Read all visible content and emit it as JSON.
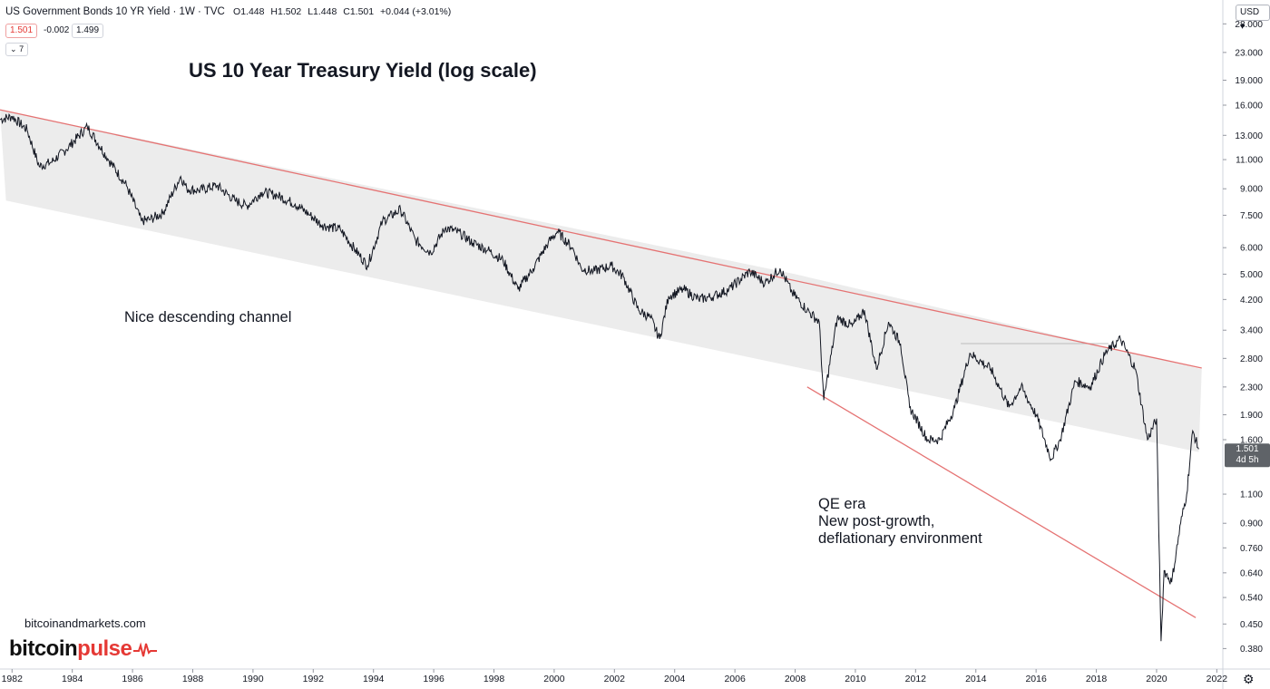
{
  "header": {
    "symbol": "US Government Bonds 10 YR Yield · 1W · TVC",
    "open": "O1.448",
    "high": "H1.502",
    "low": "L1.448",
    "close": "C1.501",
    "change": "+0.044 (+3.01%)",
    "price_pill": "1.501",
    "spread": "-0.002",
    "ask_pill": "1.499",
    "collapse_count": "7",
    "currency": "USD"
  },
  "annotations": {
    "title": "US 10 Year Treasury Yield (log scale)",
    "channel_note": "Nice descending channel",
    "qe_line1": "QE era",
    "qe_line2": "New post-growth,",
    "qe_line3": "deflationary environment"
  },
  "branding": {
    "site": "bitcoinandmarkets.com",
    "logo_part1": "bitcoin",
    "logo_part2": "pulse"
  },
  "price_tag": {
    "value": "1.501",
    "countdown": "4d 5h"
  },
  "colors": {
    "price_line": "#131722",
    "trendline": "#e57373",
    "channel_fill": "#ececec",
    "price_tag_bg": "#5f6368",
    "accent_red": "#e53935"
  },
  "chart_data": {
    "type": "line",
    "title": "US 10 Year Treasury Yield (log scale)",
    "y_scale": "log",
    "ylim": [
      0.33,
      33
    ],
    "xlim": [
      1981.6,
      2022.2
    ],
    "y_ticks": [
      "28.000",
      "23.000",
      "19.000",
      "16.000",
      "13.000",
      "11.000",
      "9.000",
      "7.500",
      "6.000",
      "5.000",
      "4.200",
      "3.400",
      "2.800",
      "2.300",
      "1.900",
      "1.600",
      "1.100",
      "0.900",
      "0.760",
      "0.640",
      "0.540",
      "0.450",
      "0.380"
    ],
    "x_ticks": [
      "1982",
      "1984",
      "1986",
      "1988",
      "1990",
      "1992",
      "1994",
      "1996",
      "1998",
      "2000",
      "2002",
      "2004",
      "2006",
      "2008",
      "2010",
      "2012",
      "2014",
      "2016",
      "2018",
      "2020",
      "2022"
    ],
    "series": [
      {
        "x": [
          1981.6,
          1982.0,
          1982.5,
          1982.9,
          1983.3,
          1983.8,
          1984.5,
          1985.2,
          1985.8,
          1986.3,
          1986.6,
          1987.0,
          1987.6,
          1987.8,
          1988.2,
          1988.8,
          1989.4,
          1989.8,
          1990.3,
          1990.8,
          1991.4,
          1991.9,
          1992.3,
          1992.9,
          1993.4,
          1993.8,
          1994.3,
          1994.9,
          1995.4,
          1995.9,
          1996.4,
          1996.9,
          1997.3,
          1997.8,
          1998.3,
          1998.8,
          1999.3,
          1999.8,
          2000.1,
          2000.6,
          2000.9,
          2001.3,
          2001.9,
          2002.3,
          2002.8,
          2003.2,
          2003.5,
          2003.8,
          2004.3,
          2004.8,
          2005.3,
          2005.8,
          2006.5,
          2007.0,
          2007.5,
          2007.9,
          2008.4,
          2008.8,
          2008.95,
          2009.4,
          2009.9,
          2010.3,
          2010.7,
          2011.1,
          2011.5,
          2011.8,
          2012.4,
          2012.8,
          2013.3,
          2013.8,
          2014.5,
          2015.1,
          2015.5,
          2016.0,
          2016.5,
          2016.8,
          2017.3,
          2017.8,
          2018.3,
          2018.8,
          2019.3,
          2019.7,
          2020.0,
          2020.15,
          2020.25,
          2020.5,
          2020.8,
          2021.0,
          2021.2,
          2021.4
        ],
        "y": [
          14.5,
          14.8,
          13.5,
          10.5,
          10.8,
          11.8,
          13.8,
          11.0,
          9.2,
          7.2,
          7.3,
          7.6,
          9.8,
          9.0,
          8.9,
          9.2,
          8.3,
          8.0,
          8.8,
          8.6,
          8.1,
          7.5,
          7.0,
          6.8,
          5.9,
          5.3,
          7.2,
          7.8,
          6.3,
          5.8,
          6.9,
          6.6,
          6.2,
          5.9,
          5.5,
          4.5,
          5.2,
          6.2,
          6.7,
          6.0,
          5.2,
          5.1,
          5.3,
          4.9,
          3.9,
          3.7,
          3.2,
          4.3,
          4.5,
          4.2,
          4.3,
          4.5,
          5.1,
          4.7,
          5.2,
          4.4,
          3.9,
          3.6,
          2.1,
          3.7,
          3.5,
          3.9,
          2.6,
          3.6,
          3.1,
          2.0,
          1.6,
          1.6,
          2.0,
          2.9,
          2.6,
          2.0,
          2.3,
          1.9,
          1.4,
          1.6,
          2.4,
          2.3,
          2.9,
          3.2,
          2.6,
          1.6,
          1.85,
          0.4,
          0.65,
          0.6,
          0.9,
          1.1,
          1.7,
          1.5
        ]
      }
    ],
    "channel": {
      "upper": [
        [
          1981.6,
          15.5
        ],
        [
          2008.0,
          5.0
        ],
        [
          2021.5,
          2.6
        ]
      ],
      "lower": [
        [
          1981.8,
          8.3
        ],
        [
          2021.4,
          1.47
        ]
      ]
    },
    "upper_trendline": [
      [
        1981.6,
        15.5
      ],
      [
        2021.5,
        2.62
      ]
    ],
    "lower_trendline": [
      [
        2008.4,
        2.3
      ],
      [
        2021.3,
        0.47
      ]
    ],
    "resistance_line": {
      "x": [
        2013.5,
        2018.4
      ],
      "y": 3.1
    }
  }
}
